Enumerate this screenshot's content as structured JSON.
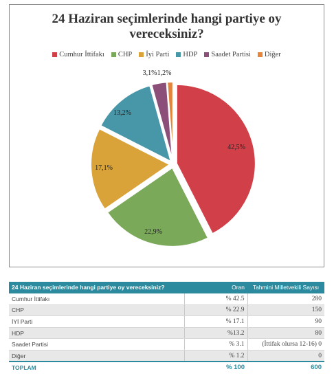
{
  "chart_data": {
    "type": "pie",
    "title": "24 Haziran seçimlerinde hangi partiye oy vereceksiniz?",
    "title_lines": [
      "24 Haziran seçimlerinde hangi partiye oy",
      "vereceksiniz?"
    ],
    "categories": [
      "Cumhur İttifakı",
      "CHP",
      "İyi Parti",
      "HDP",
      "Saadet Partisi",
      "Diğer"
    ],
    "values": [
      42.5,
      22.9,
      17.1,
      13.2,
      3.1,
      1.2
    ],
    "data_labels": [
      "42,5%",
      "22,9%",
      "17,1%",
      "13,2%",
      "3,1%",
      "1,2%"
    ],
    "colors": [
      "#d14049",
      "#7ba95a",
      "#d9a33a",
      "#4897a8",
      "#8c4f79",
      "#e5853b"
    ],
    "legend_position": "top",
    "exploded": true
  },
  "table": {
    "header": {
      "question": "24 Haziran seçimlerinde hangi partiye oy vereceksiniz?",
      "rate": "Oran",
      "mp_count": "Tahmini Milletvekili Sayısı"
    },
    "rows": [
      {
        "party": "Cumhur İttifakı",
        "rate": "% 42.5",
        "mp": "280"
      },
      {
        "party": "CHP",
        "rate": "% 22.9",
        "mp": "150"
      },
      {
        "party": "İYİ Parti",
        "rate": "% 17.1",
        "mp": "90"
      },
      {
        "party": "HDP",
        "rate": "%13.2",
        "mp": "80"
      },
      {
        "party": "Saadet Partisi",
        "rate": "% 3.1",
        "mp": "(İttifak olursa 12-16) 0"
      },
      {
        "party": "Diğer",
        "rate": "% 1.2",
        "mp": "0"
      }
    ],
    "total": {
      "label": "TOPLAM",
      "rate": "% 100",
      "mp": "600"
    }
  }
}
